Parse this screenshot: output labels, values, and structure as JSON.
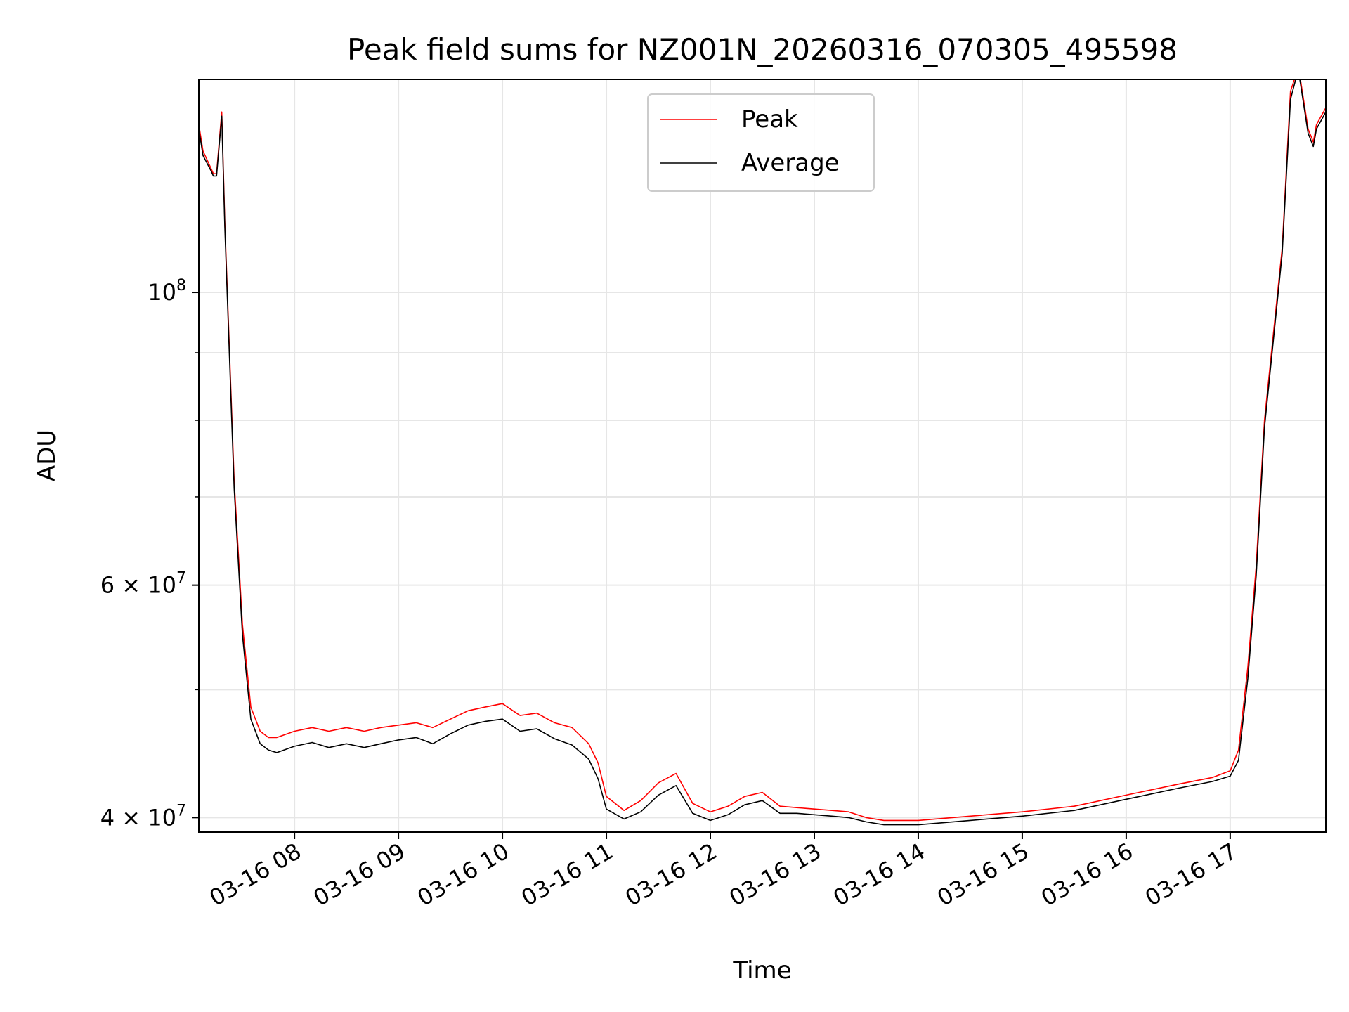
{
  "chart_data": {
    "type": "line",
    "title": "Peak field sums for NZ001N_20260316_070305_495598",
    "xlabel": "Time",
    "ylabel": "ADU",
    "yscale": "log",
    "ylim": [
      39000000,
      145000000
    ],
    "xlim_hours": [
      7.08,
      17.92
    ],
    "grid": true,
    "legend_position": "top-center",
    "x_ticks": [
      {
        "hour": 8,
        "label": "03-16 08"
      },
      {
        "hour": 9,
        "label": "03-16 09"
      },
      {
        "hour": 10,
        "label": "03-16 10"
      },
      {
        "hour": 11,
        "label": "03-16 11"
      },
      {
        "hour": 12,
        "label": "03-16 12"
      },
      {
        "hour": 13,
        "label": "03-16 13"
      },
      {
        "hour": 14,
        "label": "03-16 14"
      },
      {
        "hour": 15,
        "label": "03-16 15"
      },
      {
        "hour": 16,
        "label": "03-16 16"
      },
      {
        "hour": 17,
        "label": "03-16 17"
      }
    ],
    "y_ticks_major": [
      {
        "value": 40000000,
        "label_mantissa": "4",
        "label_exp": "7"
      },
      {
        "value": 60000000,
        "label_mantissa": "6",
        "label_exp": "7"
      },
      {
        "value": 100000000,
        "label_mantissa": "",
        "label_exp": "8"
      }
    ],
    "y_ticks_minor": [
      50000000,
      70000000,
      80000000,
      90000000
    ],
    "series": [
      {
        "name": "Peak",
        "color": "#ff0000",
        "x": [
          7.08,
          7.12,
          7.2,
          7.22,
          7.25,
          7.3,
          7.33,
          7.42,
          7.5,
          7.58,
          7.67,
          7.75,
          7.83,
          8.0,
          8.17,
          8.33,
          8.5,
          8.67,
          8.83,
          9.0,
          9.17,
          9.33,
          9.5,
          9.67,
          9.83,
          10.0,
          10.17,
          10.33,
          10.5,
          10.67,
          10.83,
          10.92,
          11.0,
          11.17,
          11.33,
          11.5,
          11.67,
          11.83,
          12.0,
          12.17,
          12.33,
          12.5,
          12.67,
          12.83,
          13.0,
          13.17,
          13.33,
          13.5,
          13.67,
          13.83,
          14.0,
          14.5,
          15.0,
          15.5,
          16.0,
          16.5,
          16.83,
          17.0,
          17.08,
          17.17,
          17.25,
          17.33,
          17.5,
          17.58,
          17.63,
          17.67,
          17.75,
          17.8,
          17.83,
          17.92
        ],
        "y": [
          134000000,
          128000000,
          124000000,
          123000000,
          123000000,
          137000000,
          113000000,
          72000000,
          56000000,
          48500000,
          46500000,
          46000000,
          46000000,
          46500000,
          46800000,
          46500000,
          46800000,
          46500000,
          46800000,
          47000000,
          47200000,
          46800000,
          47500000,
          48200000,
          48500000,
          48800000,
          47800000,
          48000000,
          47200000,
          46800000,
          45500000,
          44000000,
          41500000,
          40500000,
          41200000,
          42500000,
          43200000,
          41000000,
          40400000,
          40800000,
          41500000,
          41800000,
          40800000,
          40700000,
          40600000,
          40500000,
          40400000,
          40000000,
          39800000,
          39800000,
          39800000,
          40100000,
          40400000,
          40800000,
          41600000,
          42400000,
          42900000,
          43400000,
          45000000,
          52000000,
          62000000,
          80000000,
          108000000,
          142000000,
          146000000,
          146000000,
          133000000,
          130000000,
          134000000,
          138000000
        ]
      },
      {
        "name": "Average",
        "color": "#000000",
        "x": [
          7.08,
          7.12,
          7.2,
          7.22,
          7.25,
          7.3,
          7.33,
          7.42,
          7.5,
          7.58,
          7.67,
          7.75,
          7.83,
          8.0,
          8.17,
          8.33,
          8.5,
          8.67,
          8.83,
          9.0,
          9.17,
          9.33,
          9.5,
          9.67,
          9.83,
          10.0,
          10.17,
          10.33,
          10.5,
          10.67,
          10.83,
          10.92,
          11.0,
          11.17,
          11.33,
          11.5,
          11.67,
          11.83,
          12.0,
          12.17,
          12.33,
          12.5,
          12.67,
          12.83,
          13.0,
          13.17,
          13.33,
          13.5,
          13.67,
          13.83,
          14.0,
          14.5,
          15.0,
          15.5,
          16.0,
          16.5,
          16.83,
          17.0,
          17.08,
          17.17,
          17.25,
          17.33,
          17.5,
          17.58,
          17.63,
          17.67,
          17.75,
          17.8,
          17.83,
          17.92
        ],
        "y": [
          133000000,
          127000000,
          123500000,
          122500000,
          122500000,
          136000000,
          112000000,
          71000000,
          55000000,
          47500000,
          45500000,
          45000000,
          44800000,
          45300000,
          45600000,
          45200000,
          45500000,
          45200000,
          45500000,
          45800000,
          46000000,
          45500000,
          46300000,
          47000000,
          47300000,
          47500000,
          46500000,
          46700000,
          45900000,
          45400000,
          44300000,
          42800000,
          40600000,
          39900000,
          40400000,
          41600000,
          42300000,
          40300000,
          39800000,
          40200000,
          40900000,
          41200000,
          40300000,
          40300000,
          40200000,
          40100000,
          40000000,
          39700000,
          39500000,
          39500000,
          39500000,
          39800000,
          40100000,
          40500000,
          41300000,
          42100000,
          42600000,
          43000000,
          44200000,
          51000000,
          61000000,
          79000000,
          107000000,
          140000000,
          145000000,
          145000000,
          132000000,
          129000000,
          133000000,
          137000000
        ]
      }
    ]
  }
}
